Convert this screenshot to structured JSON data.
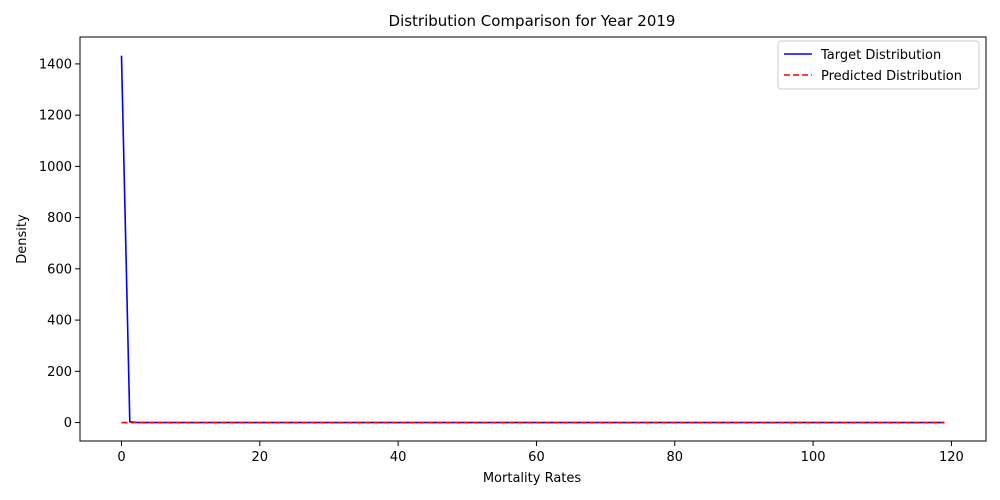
{
  "chart_data": {
    "type": "line",
    "title": "Distribution Comparison for Year 2019",
    "xlabel": "Mortality Rates",
    "ylabel": "Density",
    "xlim": [
      -6,
      125
    ],
    "ylim": [
      -72,
      1505
    ],
    "x_ticks": [
      0,
      20,
      40,
      60,
      80,
      100,
      120
    ],
    "y_ticks": [
      0,
      200,
      400,
      600,
      800,
      1000,
      1200,
      1400
    ],
    "grid": false,
    "legend_position": "top-right",
    "series": [
      {
        "name": "Target Distribution",
        "color": "#0000ff",
        "style": "solid",
        "x": [
          0,
          1.2,
          2.4,
          10,
          20,
          30,
          40,
          50,
          60,
          70,
          80,
          90,
          100,
          110,
          119
        ],
        "y": [
          1432,
          3,
          0,
          0,
          0,
          0,
          0,
          0,
          0,
          0,
          0,
          0,
          0,
          0,
          0
        ]
      },
      {
        "name": "Predicted Distribution",
        "color": "#ff0000",
        "style": "dashed",
        "x": [
          0,
          10,
          20,
          30,
          40,
          50,
          60,
          70,
          80,
          90,
          100,
          110,
          119
        ],
        "y": [
          0,
          0,
          0,
          0,
          0,
          0,
          0,
          0,
          0,
          0,
          0,
          0,
          0
        ]
      }
    ]
  }
}
